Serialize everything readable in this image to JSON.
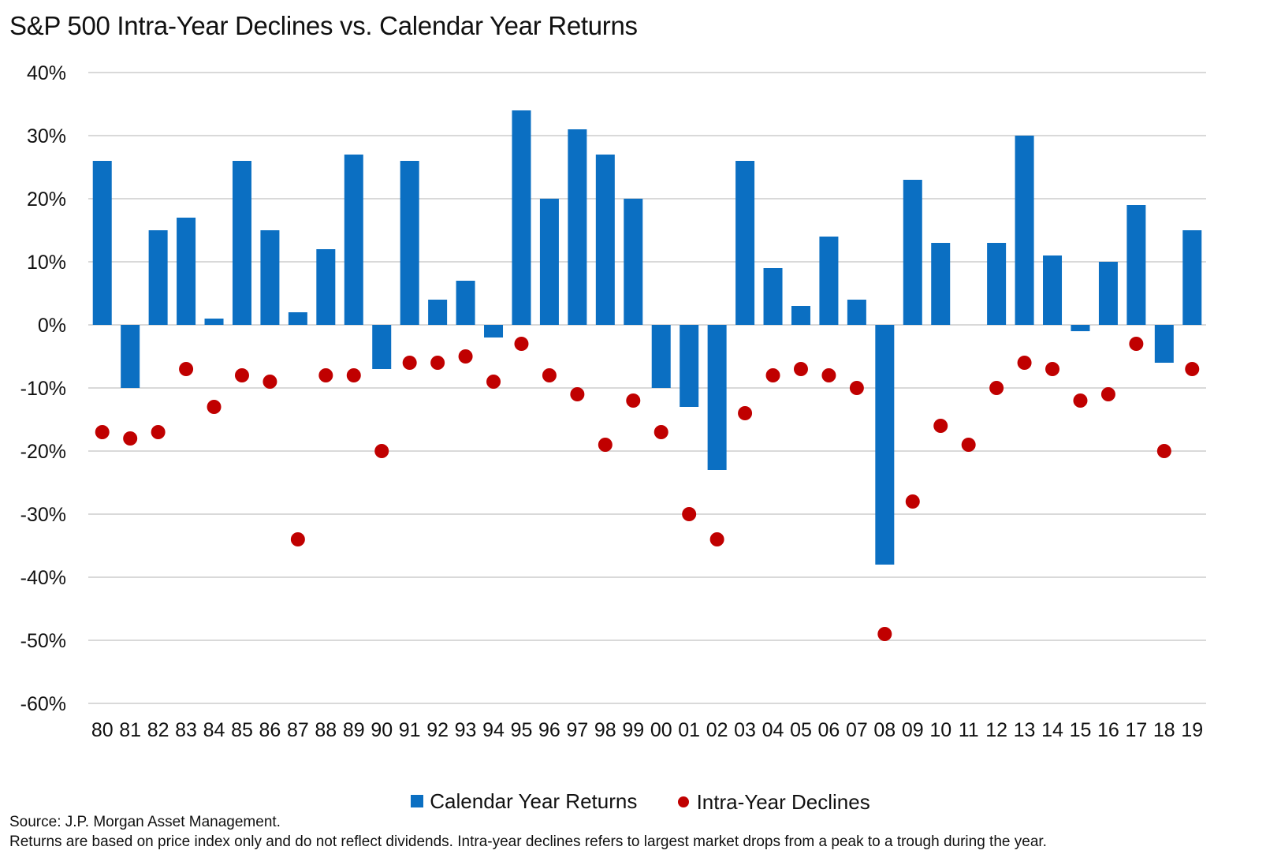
{
  "chart_data": {
    "type": "bar",
    "title": "S&P 500 Intra-Year Declines vs. Calendar Year Returns",
    "categories": [
      "80",
      "81",
      "82",
      "83",
      "84",
      "85",
      "86",
      "87",
      "88",
      "89",
      "90",
      "91",
      "92",
      "93",
      "94",
      "95",
      "96",
      "97",
      "98",
      "99",
      "00",
      "01",
      "02",
      "03",
      "04",
      "05",
      "06",
      "07",
      "08",
      "09",
      "10",
      "11",
      "12",
      "13",
      "14",
      "15",
      "16",
      "17",
      "18",
      "19"
    ],
    "series": [
      {
        "name": "Calendar Year Returns",
        "kind": "bar",
        "color": "#0b6fc2",
        "values": [
          26,
          -10,
          15,
          17,
          1,
          26,
          15,
          2,
          12,
          27,
          -7,
          26,
          4,
          7,
          -2,
          34,
          20,
          31,
          27,
          20,
          -10,
          -13,
          -23,
          26,
          9,
          3,
          14,
          4,
          -38,
          23,
          13,
          0,
          13,
          30,
          11,
          -1,
          10,
          19,
          -6,
          15
        ]
      },
      {
        "name": "Intra-Year Declines",
        "kind": "scatter",
        "color": "#c00000",
        "values": [
          -17,
          -18,
          -17,
          -7,
          -13,
          -8,
          -9,
          -34,
          -8,
          -8,
          -20,
          -6,
          -6,
          -5,
          -9,
          -3,
          -8,
          -11,
          -19,
          -12,
          -17,
          -30,
          -34,
          -14,
          -8,
          -7,
          -8,
          -10,
          -49,
          -28,
          -16,
          -19,
          -10,
          -6,
          -7,
          -12,
          -11,
          -3,
          -20,
          -7
        ]
      }
    ],
    "ylim": [
      -60,
      40
    ],
    "yticks": [
      40,
      30,
      20,
      10,
      0,
      -10,
      -20,
      -30,
      -40,
      -50,
      -60
    ],
    "ytick_labels": [
      "40%",
      "30%",
      "20%",
      "10%",
      "0%",
      "-10%",
      "-20%",
      "-30%",
      "-40%",
      "-50%",
      "-60%"
    ],
    "grid": true,
    "legend_position": "bottom"
  },
  "source": "Source: J.P. Morgan Asset Management.",
  "footnote": "Returns are based on price index only and do not reflect dividends. Intra-year declines refers to largest market drops from a peak to a trough during the year."
}
